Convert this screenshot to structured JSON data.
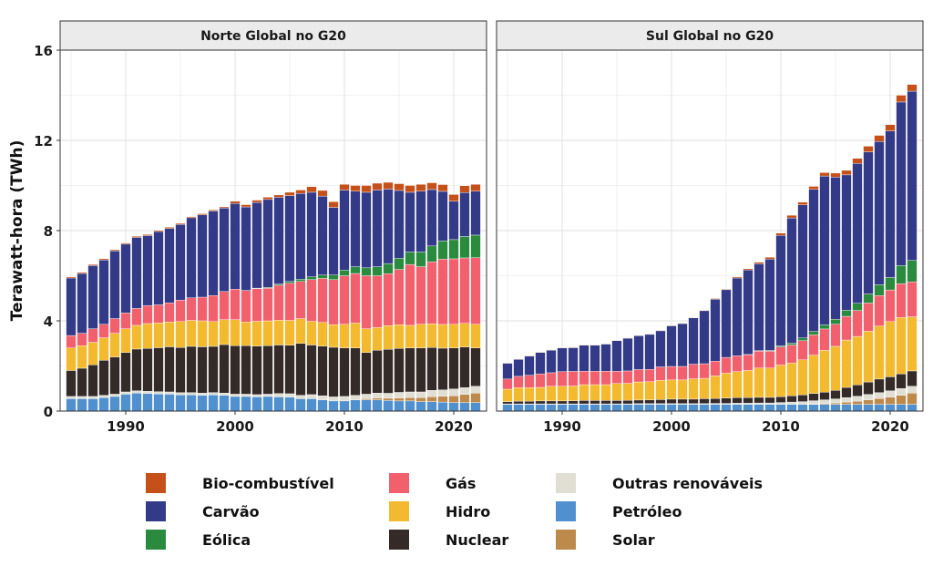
{
  "chart_data": {
    "type": "bar",
    "stacked": true,
    "ylabel": "Terawatt-hora (TWh)",
    "ylim": [
      0,
      16
    ],
    "yticks": [
      0,
      4,
      8,
      12,
      16
    ],
    "xticks": [
      1990,
      2000,
      2010,
      2020
    ],
    "xlim": [
      1984,
      2023
    ],
    "grid": true,
    "legend_position": "bottom",
    "stack_order": [
      "Petróleo",
      "Solar",
      "Outras renováveis",
      "Nuclear",
      "Hidro",
      "Gás",
      "Eólica",
      "Carvão",
      "Bio-combustível"
    ],
    "legend": [
      {
        "name": "Bio-combustível",
        "color": "#c6501a"
      },
      {
        "name": "Carvão",
        "color": "#333a87"
      },
      {
        "name": "Eólica",
        "color": "#2a8a3e"
      },
      {
        "name": "Gás",
        "color": "#f2606e"
      },
      {
        "name": "Hidro",
        "color": "#f4ba2f"
      },
      {
        "name": "Nuclear",
        "color": "#342a28"
      },
      {
        "name": "Outras renováveis",
        "color": "#e1ded3"
      },
      {
        "name": "Petróleo",
        "color": "#5190cf"
      },
      {
        "name": "Solar",
        "color": "#bd8a4c"
      }
    ],
    "panels": [
      {
        "title": "Norte Global no G20",
        "x": [
          1985,
          1986,
          1987,
          1988,
          1989,
          1990,
          1991,
          1992,
          1993,
          1994,
          1995,
          1996,
          1997,
          1998,
          1999,
          2000,
          2001,
          2002,
          2003,
          2004,
          2005,
          2006,
          2007,
          2008,
          2009,
          2010,
          2011,
          2012,
          2013,
          2014,
          2015,
          2016,
          2017,
          2018,
          2019,
          2020,
          2021,
          2022
        ],
        "series": [
          {
            "name": "Petróleo",
            "values": [
              0.55,
              0.55,
              0.55,
              0.6,
              0.65,
              0.75,
              0.8,
              0.78,
              0.76,
              0.75,
              0.72,
              0.72,
              0.7,
              0.72,
              0.7,
              0.65,
              0.65,
              0.63,
              0.65,
              0.63,
              0.62,
              0.55,
              0.55,
              0.5,
              0.45,
              0.45,
              0.5,
              0.5,
              0.5,
              0.47,
              0.45,
              0.45,
              0.42,
              0.42,
              0.4,
              0.38,
              0.38,
              0.38
            ]
          },
          {
            "name": "Solar",
            "values": [
              0,
              0,
              0,
              0,
              0,
              0,
              0,
              0,
              0,
              0,
              0,
              0,
              0,
              0,
              0,
              0,
              0,
              0,
              0,
              0,
              0,
              0,
              0,
              0,
              0,
              0,
              0,
              0.05,
              0.08,
              0.1,
              0.13,
              0.15,
              0.18,
              0.22,
              0.26,
              0.3,
              0.36,
              0.42
            ]
          },
          {
            "name": "Outras renováveis",
            "values": [
              0.1,
              0.1,
              0.1,
              0.1,
              0.1,
              0.1,
              0.1,
              0.1,
              0.1,
              0.1,
              0.1,
              0.1,
              0.1,
              0.1,
              0.1,
              0.1,
              0.1,
              0.1,
              0.1,
              0.15,
              0.15,
              0.15,
              0.18,
              0.18,
              0.18,
              0.2,
              0.2,
              0.2,
              0.22,
              0.22,
              0.25,
              0.25,
              0.25,
              0.28,
              0.28,
              0.3,
              0.3,
              0.3
            ]
          },
          {
            "name": "Nuclear",
            "values": [
              1.15,
              1.25,
              1.4,
              1.55,
              1.65,
              1.75,
              1.85,
              1.9,
              1.95,
              2.0,
              2.0,
              2.05,
              2.05,
              2.05,
              2.15,
              2.15,
              2.15,
              2.15,
              2.15,
              2.15,
              2.15,
              2.3,
              2.2,
              2.2,
              2.2,
              2.15,
              2.1,
              1.85,
              1.9,
              1.95,
              1.95,
              1.95,
              1.95,
              1.9,
              1.85,
              1.82,
              1.8,
              1.7
            ]
          },
          {
            "name": "Hidro",
            "values": [
              1.0,
              1.0,
              1.0,
              1.0,
              1.05,
              1.05,
              1.05,
              1.1,
              1.1,
              1.1,
              1.15,
              1.15,
              1.15,
              1.1,
              1.1,
              1.15,
              1.05,
              1.1,
              1.1,
              1.1,
              1.1,
              1.1,
              1.05,
              1.05,
              1.0,
              1.05,
              1.1,
              1.05,
              1.0,
              1.05,
              1.05,
              1.0,
              1.05,
              1.05,
              1.05,
              1.05,
              1.05,
              1.05
            ]
          },
          {
            "name": "Gás",
            "values": [
              0.55,
              0.55,
              0.6,
              0.6,
              0.65,
              0.7,
              0.75,
              0.8,
              0.8,
              0.85,
              0.95,
              1.0,
              1.05,
              1.15,
              1.25,
              1.35,
              1.4,
              1.45,
              1.45,
              1.55,
              1.65,
              1.65,
              1.85,
              1.95,
              2.0,
              2.15,
              2.2,
              2.35,
              2.3,
              2.3,
              2.45,
              2.7,
              2.55,
              2.75,
              2.9,
              2.9,
              2.9,
              2.95
            ]
          },
          {
            "name": "Eólica",
            "values": [
              0,
              0,
              0,
              0,
              0,
              0,
              0,
              0,
              0,
              0,
              0,
              0,
              0,
              0,
              0,
              0,
              0,
              0.02,
              0.03,
              0.05,
              0.08,
              0.1,
              0.12,
              0.15,
              0.2,
              0.25,
              0.3,
              0.35,
              0.4,
              0.45,
              0.5,
              0.55,
              0.65,
              0.7,
              0.8,
              0.85,
              0.95,
              1.0
            ]
          },
          {
            "name": "Carvão",
            "values": [
              2.55,
              2.65,
              2.8,
              2.85,
              3.0,
              3.05,
              3.15,
              3.1,
              3.25,
              3.3,
              3.35,
              3.55,
              3.65,
              3.75,
              3.7,
              3.8,
              3.7,
              3.8,
              3.9,
              3.85,
              3.8,
              3.8,
              3.75,
              3.5,
              3.0,
              3.55,
              3.35,
              3.35,
              3.4,
              3.3,
              3.0,
              2.65,
              2.7,
              2.5,
              2.2,
              1.7,
              1.95,
              1.95
            ]
          },
          {
            "name": "Bio-combustível",
            "values": [
              0.05,
              0.05,
              0.05,
              0.05,
              0.05,
              0.05,
              0.05,
              0.05,
              0.05,
              0.05,
              0.05,
              0.05,
              0.05,
              0.05,
              0.05,
              0.1,
              0.1,
              0.1,
              0.1,
              0.1,
              0.15,
              0.15,
              0.25,
              0.25,
              0.25,
              0.25,
              0.25,
              0.3,
              0.3,
              0.3,
              0.3,
              0.3,
              0.3,
              0.3,
              0.3,
              0.3,
              0.3,
              0.3
            ]
          }
        ]
      },
      {
        "title": "Sul Global no G20",
        "x": [
          1985,
          1986,
          1987,
          1988,
          1989,
          1990,
          1991,
          1992,
          1993,
          1994,
          1995,
          1996,
          1997,
          1998,
          1999,
          2000,
          2001,
          2002,
          2003,
          2004,
          2005,
          2006,
          2007,
          2008,
          2009,
          2010,
          2011,
          2012,
          2013,
          2014,
          2015,
          2016,
          2017,
          2018,
          2019,
          2020,
          2021,
          2022
        ],
        "series": [
          {
            "name": "Petróleo",
            "values": [
              0.3,
              0.3,
              0.3,
              0.3,
              0.3,
              0.3,
              0.3,
              0.3,
              0.3,
              0.3,
              0.3,
              0.3,
              0.3,
              0.3,
              0.3,
              0.3,
              0.3,
              0.3,
              0.3,
              0.3,
              0.3,
              0.3,
              0.3,
              0.3,
              0.3,
              0.3,
              0.3,
              0.3,
              0.3,
              0.3,
              0.3,
              0.3,
              0.3,
              0.3,
              0.3,
              0.3,
              0.3,
              0.3
            ]
          },
          {
            "name": "Solar",
            "values": [
              0,
              0,
              0,
              0,
              0,
              0,
              0,
              0,
              0,
              0,
              0,
              0,
              0,
              0,
              0,
              0,
              0,
              0,
              0,
              0,
              0,
              0,
              0,
              0,
              0,
              0,
              0,
              0,
              0.02,
              0.04,
              0.06,
              0.1,
              0.14,
              0.2,
              0.26,
              0.32,
              0.4,
              0.5
            ]
          },
          {
            "name": "Outras renováveis",
            "values": [
              0.02,
              0.02,
              0.02,
              0.02,
              0.02,
              0.02,
              0.02,
              0.02,
              0.02,
              0.02,
              0.02,
              0.02,
              0.03,
              0.03,
              0.03,
              0.03,
              0.03,
              0.03,
              0.03,
              0.04,
              0.04,
              0.05,
              0.05,
              0.06,
              0.06,
              0.08,
              0.1,
              0.12,
              0.14,
              0.16,
              0.18,
              0.2,
              0.22,
              0.24,
              0.26,
              0.28,
              0.3,
              0.3
            ]
          },
          {
            "name": "Nuclear",
            "values": [
              0.1,
              0.12,
              0.12,
              0.13,
              0.13,
              0.13,
              0.14,
              0.15,
              0.15,
              0.15,
              0.15,
              0.16,
              0.16,
              0.17,
              0.18,
              0.2,
              0.2,
              0.2,
              0.22,
              0.22,
              0.24,
              0.25,
              0.25,
              0.25,
              0.25,
              0.26,
              0.28,
              0.3,
              0.32,
              0.34,
              0.38,
              0.45,
              0.5,
              0.55,
              0.6,
              0.62,
              0.65,
              0.68
            ]
          },
          {
            "name": "Hidro",
            "values": [
              0.55,
              0.6,
              0.6,
              0.6,
              0.65,
              0.65,
              0.65,
              0.7,
              0.7,
              0.7,
              0.75,
              0.75,
              0.8,
              0.8,
              0.85,
              0.85,
              0.85,
              0.9,
              0.9,
              1.0,
              1.1,
              1.15,
              1.2,
              1.3,
              1.3,
              1.4,
              1.45,
              1.55,
              1.7,
              1.85,
              1.95,
              2.1,
              2.15,
              2.25,
              2.35,
              2.45,
              2.5,
              2.4
            ]
          },
          {
            "name": "Gás",
            "values": [
              0.45,
              0.5,
              0.55,
              0.6,
              0.6,
              0.65,
              0.65,
              0.6,
              0.6,
              0.6,
              0.55,
              0.55,
              0.55,
              0.55,
              0.6,
              0.6,
              0.6,
              0.65,
              0.65,
              0.65,
              0.7,
              0.7,
              0.7,
              0.75,
              0.75,
              0.8,
              0.8,
              0.85,
              0.9,
              0.95,
              0.98,
              1.05,
              1.15,
              1.25,
              1.35,
              1.4,
              1.5,
              1.55
            ]
          },
          {
            "name": "Eólica",
            "values": [
              0,
              0,
              0,
              0,
              0,
              0,
              0,
              0,
              0,
              0,
              0,
              0,
              0,
              0,
              0,
              0,
              0,
              0,
              0,
              0,
              0,
              0,
              0.01,
              0.02,
              0.03,
              0.05,
              0.08,
              0.12,
              0.15,
              0.18,
              0.22,
              0.27,
              0.32,
              0.4,
              0.48,
              0.55,
              0.8,
              0.95
            ]
          },
          {
            "name": "Carvão",
            "values": [
              0.7,
              0.75,
              0.85,
              0.95,
              1.0,
              1.05,
              1.05,
              1.15,
              1.15,
              1.2,
              1.35,
              1.45,
              1.5,
              1.55,
              1.6,
              1.8,
              1.9,
              2.05,
              2.35,
              2.75,
              3.0,
              3.45,
              3.75,
              3.85,
              4.05,
              4.9,
              5.55,
              5.9,
              6.3,
              6.6,
              6.3,
              6.0,
              6.2,
              6.3,
              6.35,
              6.5,
              7.25,
              7.5
            ]
          },
          {
            "name": "Bio-combustível",
            "values": [
              0.02,
              0.02,
              0.02,
              0.02,
              0.02,
              0.02,
              0.02,
              0.02,
              0.02,
              0.02,
              0.02,
              0.02,
              0.02,
              0.02,
              0.02,
              0.02,
              0.02,
              0.02,
              0.02,
              0.03,
              0.03,
              0.05,
              0.05,
              0.07,
              0.08,
              0.1,
              0.12,
              0.12,
              0.13,
              0.15,
              0.18,
              0.2,
              0.22,
              0.25,
              0.27,
              0.28,
              0.3,
              0.3
            ]
          }
        ]
      }
    ]
  }
}
